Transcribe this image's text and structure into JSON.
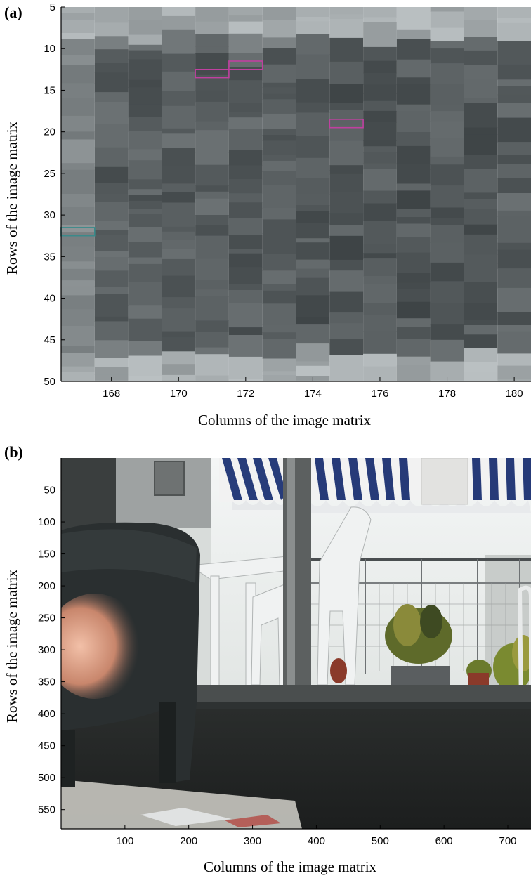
{
  "chart_data": [
    {
      "panel_label": "(a)",
      "type": "heatmap",
      "xlabel": "Columns of the image matrix",
      "ylabel": "Rows of the image matrix",
      "x_ticks": [
        168,
        170,
        172,
        174,
        176,
        178,
        180
      ],
      "y_ticks": [
        5,
        10,
        15,
        20,
        25,
        30,
        35,
        40,
        45,
        50
      ],
      "xlim": [
        166.5,
        180.5
      ],
      "ylim": [
        5,
        50
      ],
      "y_inverted": true,
      "columns": [
        167,
        168,
        169,
        170,
        171,
        172,
        173,
        174,
        175,
        176,
        177,
        178,
        179,
        180
      ],
      "colormap": "gray",
      "highlighted_cells": [
        {
          "column": 171,
          "row": 13,
          "color": "#c040a0"
        },
        {
          "column": 172,
          "row": 12,
          "color": "#c040a0"
        },
        {
          "column": 175,
          "row": 19,
          "color": "#c040a0"
        },
        {
          "column": 167,
          "row": 32,
          "color": "#3a8a8a"
        }
      ]
    },
    {
      "panel_label": "(b)",
      "type": "heatmap",
      "content": "photograph",
      "xlabel": "Columns of the image matrix",
      "ylabel": "Rows of the image matrix",
      "x_ticks": [
        100,
        200,
        300,
        400,
        500,
        600,
        700
      ],
      "y_ticks": [
        50,
        100,
        150,
        200,
        250,
        300,
        350,
        400,
        450,
        500,
        550
      ],
      "xlim": [
        0,
        740
      ],
      "ylim": [
        0,
        580
      ],
      "y_inverted": true
    }
  ]
}
